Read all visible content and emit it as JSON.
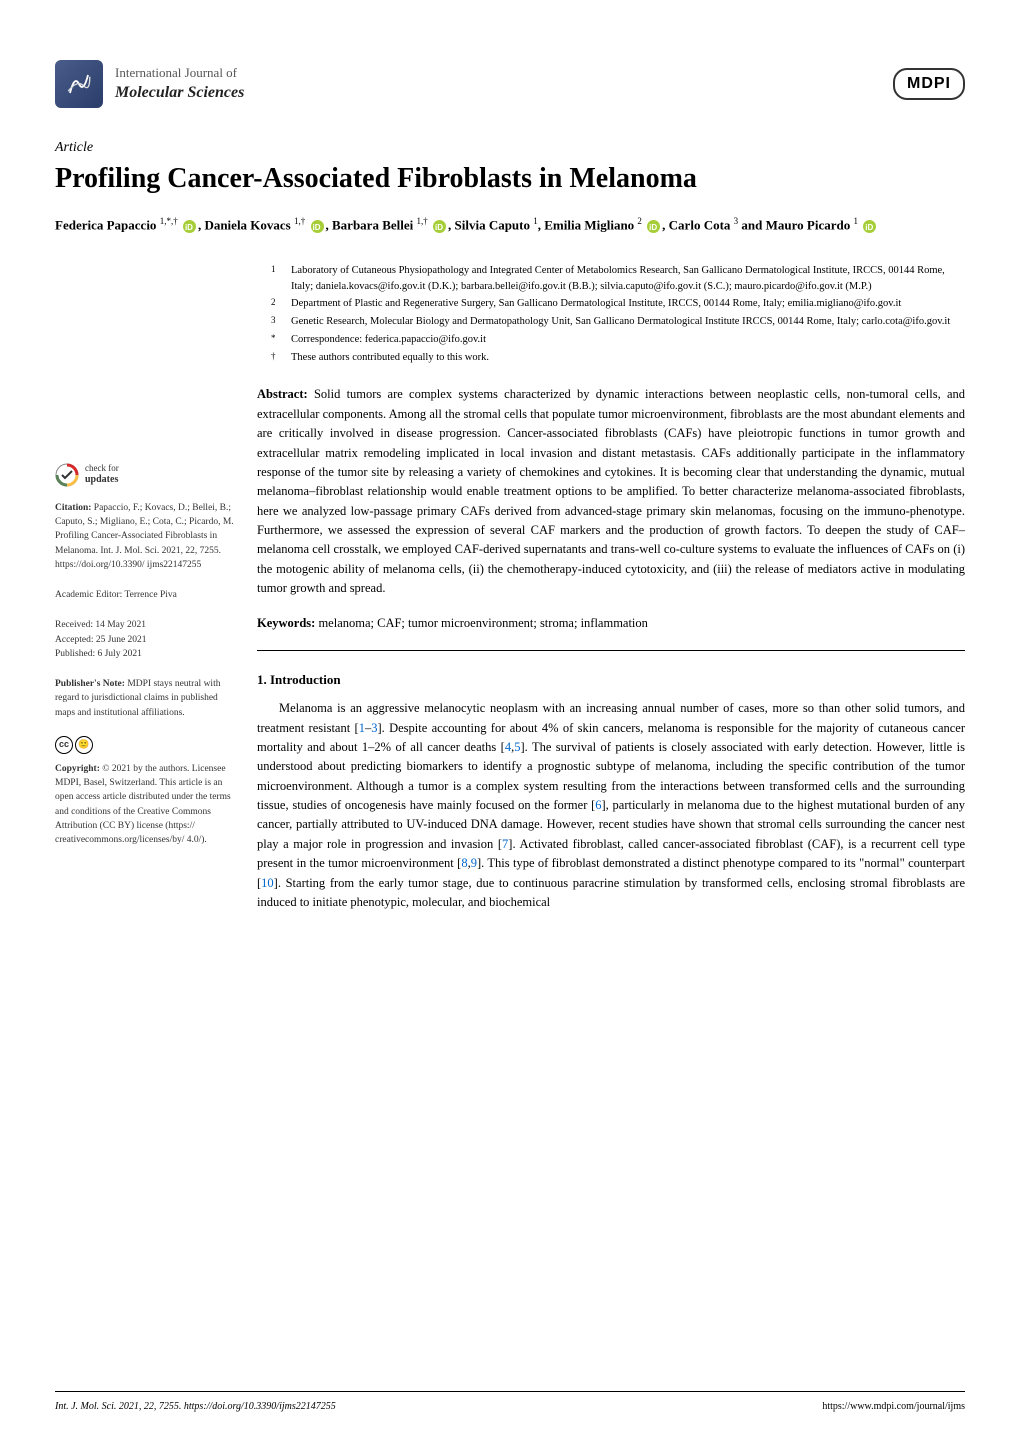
{
  "journal": {
    "supertitle": "International Journal of",
    "title": "Molecular Sciences"
  },
  "publisher_mark": "MDPI",
  "article_type": "Article",
  "title": "Profiling Cancer-Associated Fibroblasts in Melanoma",
  "authors_html": "Federica Papaccio <sup>1,*,†</sup> <span class='orcid-icon' data-name='orcid-icon' data-interactable='false'></span>, Daniela Kovacs <sup>1,†</sup> <span class='orcid-icon' data-name='orcid-icon' data-interactable='false'></span>, Barbara Bellei <sup>1,†</sup> <span class='orcid-icon' data-name='orcid-icon' data-interactable='false'></span>, Silvia Caputo <sup>1</sup>, Emilia Migliano <sup>2</sup> <span class='orcid-icon' data-name='orcid-icon' data-interactable='false'></span>, Carlo Cota <sup>3</sup> and Mauro Picardo <sup>1</sup> <span class='orcid-icon' data-name='orcid-icon' data-interactable='false'></span>",
  "affiliations": [
    {
      "num": "1",
      "text": "Laboratory of Cutaneous Physiopathology and Integrated Center of Metabolomics Research, San Gallicano Dermatological Institute, IRCCS, 00144 Rome, Italy; daniela.kovacs@ifo.gov.it (D.K.); barbara.bellei@ifo.gov.it (B.B.); silvia.caputo@ifo.gov.it (S.C.); mauro.picardo@ifo.gov.it (M.P.)"
    },
    {
      "num": "2",
      "text": "Department of Plastic and Regenerative Surgery, San Gallicano Dermatological Institute, IRCCS, 00144 Rome, Italy; emilia.migliano@ifo.gov.it"
    },
    {
      "num": "3",
      "text": "Genetic Research, Molecular Biology and Dermatopathology Unit, San Gallicano Dermatological Institute IRCCS, 00144 Rome, Italy; carlo.cota@ifo.gov.it"
    },
    {
      "num": "*",
      "text": "Correspondence: federica.papaccio@ifo.gov.it"
    },
    {
      "num": "†",
      "text": "These authors contributed equally to this work."
    }
  ],
  "abstract_label": "Abstract:",
  "abstract": "Solid tumors are complex systems characterized by dynamic interactions between neoplastic cells, non-tumoral cells, and extracellular components. Among all the stromal cells that populate tumor microenvironment, fibroblasts are the most abundant elements and are critically involved in disease progression. Cancer-associated fibroblasts (CAFs) have pleiotropic functions in tumor growth and extracellular matrix remodeling implicated in local invasion and distant metastasis. CAFs additionally participate in the inflammatory response of the tumor site by releasing a variety of chemokines and cytokines. It is becoming clear that understanding the dynamic, mutual melanoma–fibroblast relationship would enable treatment options to be amplified. To better characterize melanoma-associated fibroblasts, here we analyzed low-passage primary CAFs derived from advanced-stage primary skin melanomas, focusing on the immuno-phenotype. Furthermore, we assessed the expression of several CAF markers and the production of growth factors. To deepen the study of CAF–melanoma cell crosstalk, we employed CAF-derived supernatants and trans-well co-culture systems to evaluate the influences of CAFs on (i) the motogenic ability of melanoma cells, (ii) the chemotherapy-induced cytotoxicity, and (iii) the release of mediators active in modulating tumor growth and spread.",
  "keywords_label": "Keywords:",
  "keywords": "melanoma; CAF; tumor microenvironment; stroma; inflammation",
  "section_1_title": "1. Introduction",
  "intro_html": "Melanoma is an aggressive melanocytic neoplasm with an increasing annual number of cases, more so than other solid tumors, and treatment resistant [<span class='ref-link'>1</span>–<span class='ref-link'>3</span>]. Despite accounting for about 4% of skin cancers, melanoma is responsible for the majority of cutaneous cancer mortality and about 1–2% of all cancer deaths [<span class='ref-link'>4</span>,<span class='ref-link'>5</span>]. The survival of patients is closely associated with early detection. However, little is understood about predicting biomarkers to identify a prognostic subtype of melanoma, including the specific contribution of the tumor microenvironment. Although a tumor is a complex system resulting from the interactions between transformed cells and the surrounding tissue, studies of oncogenesis have mainly focused on the former [<span class='ref-link'>6</span>], particularly in melanoma due to the highest mutational burden of any cancer, partially attributed to UV-induced DNA damage. However, recent studies have shown that stromal cells surrounding the cancer nest play a major role in progression and invasion [<span class='ref-link'>7</span>]. Activated fibroblast, called cancer-associated fibroblast (CAF), is a recurrent cell type present in the tumor microenvironment [<span class='ref-link'>8</span>,<span class='ref-link'>9</span>]. This type of fibroblast demonstrated a distinct phenotype compared to its \"normal\" counterpart [<span class='ref-link'>10</span>]. Starting from the early tumor stage, due to continuous paracrine stimulation by transformed cells, enclosing stromal fibroblasts are induced to initiate phenotypic, molecular, and biochemical",
  "sidebar": {
    "check_updates": {
      "line1": "check for",
      "line2": "updates"
    },
    "citation_label": "Citation:",
    "citation": "Papaccio, F.; Kovacs, D.; Bellei, B.; Caputo, S.; Migliano, E.; Cota, C.; Picardo, M. Profiling Cancer-Associated Fibroblasts in Melanoma. Int. J. Mol. Sci. 2021, 22, 7255. https://doi.org/10.3390/ ijms22147255",
    "editor_label": "Academic Editor:",
    "editor": "Terrence Piva",
    "received": "Received: 14 May 2021",
    "accepted": "Accepted: 25 June 2021",
    "published": "Published: 6 July 2021",
    "pubnote_label": "Publisher's Note:",
    "pubnote": "MDPI stays neutral with regard to jurisdictional claims in published maps and institutional affiliations.",
    "copyright_label": "Copyright:",
    "copyright": "© 2021 by the authors. Licensee MDPI, Basel, Switzerland. This article is an open access article distributed under the terms and conditions of the Creative Commons Attribution (CC BY) license (https:// creativecommons.org/licenses/by/ 4.0/)."
  },
  "footer": {
    "left": "Int. J. Mol. Sci. 2021, 22, 7255. https://doi.org/10.3390/ijms22147255",
    "right": "https://www.mdpi.com/journal/ijms"
  },
  "colors": {
    "text": "#000000",
    "ref_link": "#0066cc",
    "orcid": "#a6ce39",
    "logo_bg": "#4a5d8a"
  },
  "typography": {
    "title_fontsize": 28,
    "body_fontsize": 12.5,
    "sidebar_fontsize": 9.5,
    "affil_fontsize": 10.5,
    "footer_fontsize": 10
  }
}
